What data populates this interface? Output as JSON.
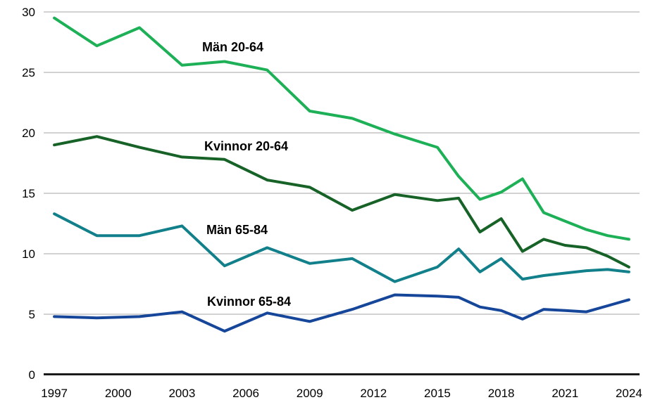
{
  "chart_data": {
    "type": "line",
    "title": "",
    "xlabel": "",
    "ylabel": "",
    "xlim": [
      1997,
      2024
    ],
    "ylim": [
      0,
      30
    ],
    "grid": "horizontal",
    "grid_color": "#a6a6a6",
    "axis_color": "#1a1a1a",
    "legend": "inline-labels",
    "x": [
      1997,
      1999,
      2001,
      2003,
      2005,
      2007,
      2009,
      2011,
      2013,
      2015,
      2016,
      2017,
      2018,
      2019,
      2020,
      2021,
      2022,
      2023,
      2024
    ],
    "xticks": [
      1997,
      2000,
      2003,
      2006,
      2009,
      2012,
      2015,
      2018,
      2021,
      2024
    ],
    "yticks": [
      0,
      5,
      10,
      15,
      20,
      25,
      30
    ],
    "series": [
      {
        "name": "Män 20-64",
        "color": "#1db056",
        "values": [
          29.5,
          27.2,
          28.7,
          25.6,
          25.9,
          25.2,
          21.8,
          21.2,
          19.9,
          18.8,
          16.4,
          14.5,
          15.1,
          16.2,
          13.4,
          12.7,
          12.0,
          11.5,
          11.2
        ]
      },
      {
        "name": "Kvinnor 20-64",
        "color": "#166227",
        "values": [
          19.0,
          19.7,
          18.8,
          18.0,
          17.8,
          16.1,
          15.5,
          13.6,
          14.9,
          14.4,
          14.6,
          11.8,
          12.9,
          10.2,
          11.2,
          10.7,
          10.5,
          9.8,
          8.9
        ]
      },
      {
        "name": "Män 65-84",
        "color": "#12808a",
        "values": [
          13.3,
          11.5,
          11.5,
          12.3,
          9.0,
          10.5,
          9.2,
          9.6,
          7.7,
          8.9,
          10.4,
          8.5,
          9.6,
          7.9,
          8.2,
          8.4,
          8.6,
          8.7,
          8.5
        ]
      },
      {
        "name": "Kvinnor 65-84",
        "color": "#16469a",
        "values": [
          4.8,
          4.7,
          4.8,
          5.2,
          3.6,
          5.1,
          4.4,
          5.4,
          6.6,
          6.5,
          6.4,
          5.6,
          5.3,
          4.6,
          5.4,
          5.3,
          5.2,
          5.7,
          6.2
        ]
      }
    ]
  }
}
